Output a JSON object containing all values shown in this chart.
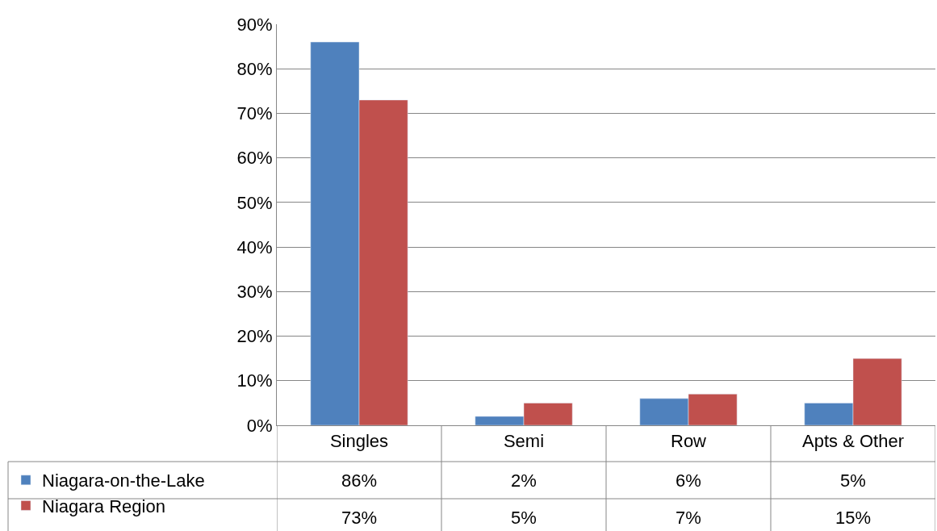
{
  "chart_data": {
    "type": "bar",
    "categories": [
      "Singles",
      "Semi",
      "Row",
      "Apts & Other"
    ],
    "series": [
      {
        "name": "Niagara-on-the-Lake",
        "color": "#4f81bd",
        "values": [
          86,
          2,
          6,
          5
        ],
        "value_labels": [
          "86%",
          "2%",
          "6%",
          "5%"
        ]
      },
      {
        "name": "Niagara Region",
        "color": "#c0504d",
        "values": [
          73,
          5,
          7,
          15
        ],
        "value_labels": [
          "73%",
          "5%",
          "7%",
          "15%"
        ]
      }
    ],
    "ylim": [
      0,
      90
    ],
    "yticks": [
      {
        "value": 0,
        "label": "0%"
      },
      {
        "value": 10,
        "label": "10%"
      },
      {
        "value": 20,
        "label": "20%"
      },
      {
        "value": 30,
        "label": "30%"
      },
      {
        "value": 40,
        "label": "40%"
      },
      {
        "value": 50,
        "label": "50%"
      },
      {
        "value": 60,
        "label": "60%"
      },
      {
        "value": 70,
        "label": "70%"
      },
      {
        "value": 80,
        "label": "80%"
      },
      {
        "value": 90,
        "label": "90%"
      }
    ],
    "grid": "y",
    "legend": "bottom left"
  }
}
